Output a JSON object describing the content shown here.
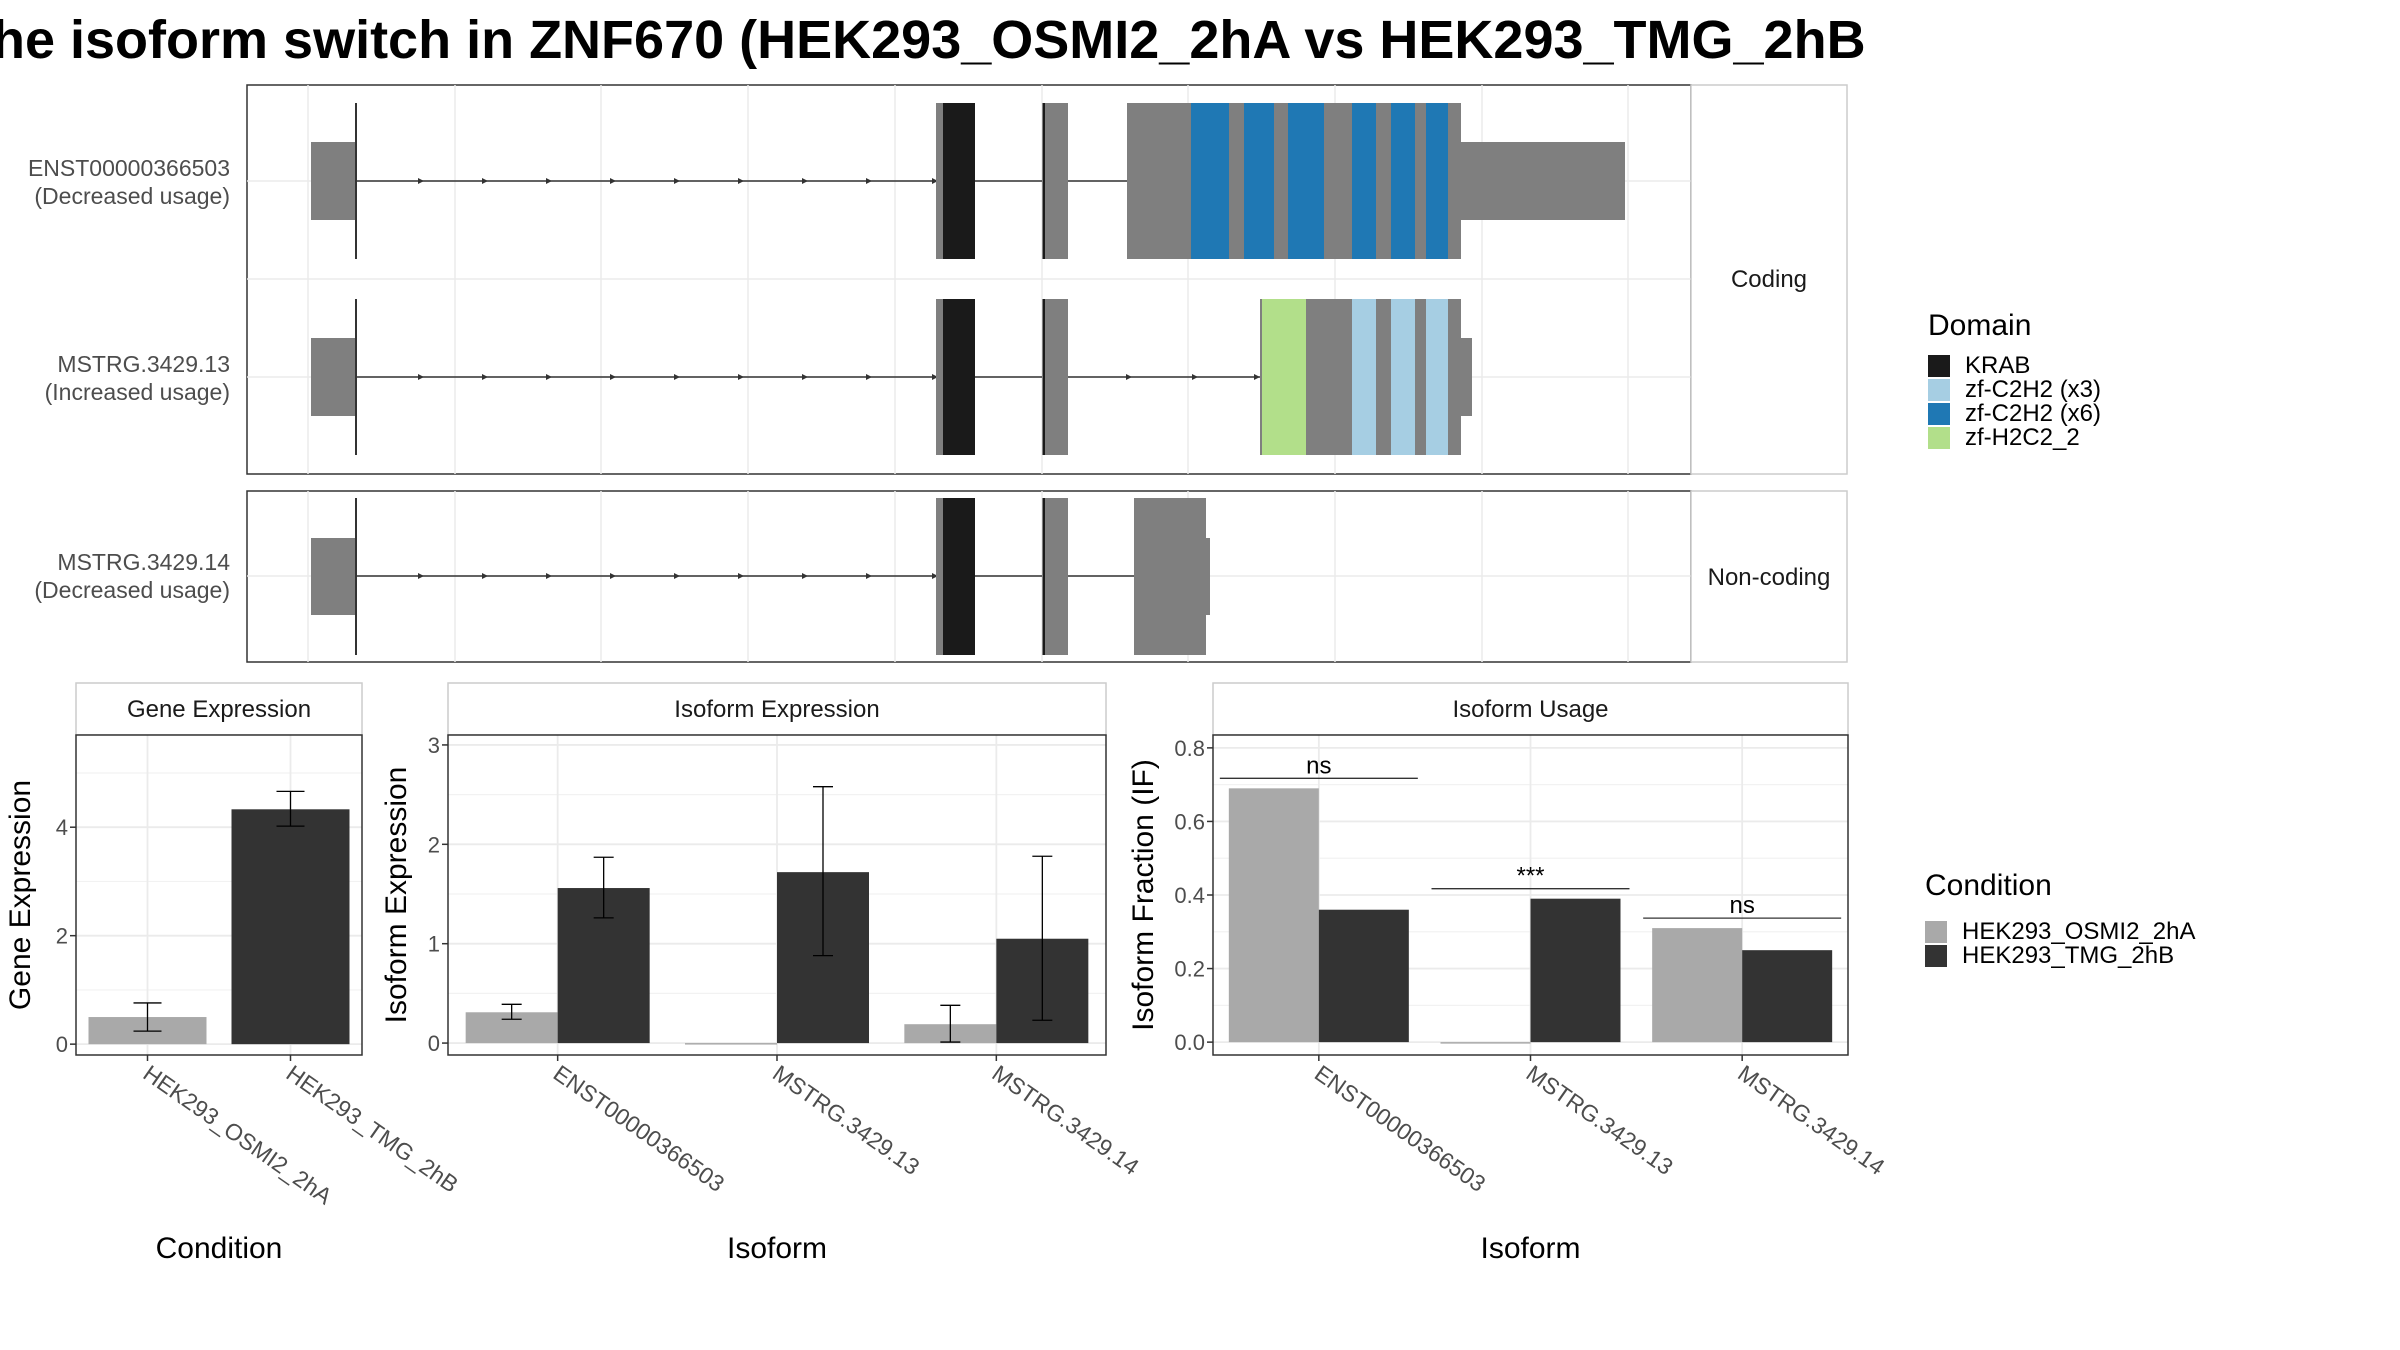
{
  "title": "he isoform switch in ZNF670 (HEK293_OSMI2_2hA vs HEK293_TMG_2hB",
  "structure": {
    "groups": [
      {
        "label": "Coding",
        "isoforms": [
          {
            "id": "ENST00000366503",
            "note": "(Decreased usage)"
          },
          {
            "id": "MSTRG.3429.13",
            "note": "(Increased usage)"
          }
        ]
      },
      {
        "label": "Non-coding",
        "isoforms": [
          {
            "id": "MSTRG.3429.14",
            "note": "(Decreased usage)"
          }
        ]
      }
    ]
  },
  "legend_domain": {
    "title": "Domain",
    "items": [
      {
        "label": "KRAB",
        "color": "#1a1a1a"
      },
      {
        "label": "zf-C2H2 (x3)",
        "color": "#a6cee3"
      },
      {
        "label": "zf-C2H2 (x6)",
        "color": "#1f78b4"
      },
      {
        "label": "zf-H2C2_2",
        "color": "#b2df8a"
      }
    ]
  },
  "legend_condition": {
    "title": "Condition",
    "items": [
      {
        "label": "HEK293_OSMI2_2hA",
        "color": "#a9a9a9"
      },
      {
        "label": "HEK293_TMG_2hB",
        "color": "#333333"
      }
    ]
  },
  "chart_data": [
    {
      "type": "bar",
      "title": "Gene Expression",
      "xlabel": "Condition",
      "ylabel": "Gene Expression",
      "categories": [
        "HEK293_OSMI2_2hA",
        "HEK293_TMG_2hB"
      ],
      "values": [
        0.5,
        4.33
      ],
      "err_low": [
        0.24,
        4.02
      ],
      "err_high": [
        0.76,
        4.66
      ],
      "ylim": [
        -0.2,
        5.7
      ],
      "yticks": [
        0,
        2,
        4
      ],
      "grid": true
    },
    {
      "type": "bar",
      "title": "Isoform Expression",
      "xlabel": "Isoform",
      "ylabel": "Isoform Expression",
      "categories": [
        "ENST00000366503",
        "MSTRG.3429.13",
        "MSTRG.3429.14"
      ],
      "series": [
        {
          "name": "HEK293_OSMI2_2hA",
          "values": [
            0.31,
            0.0,
            0.19
          ],
          "err_low": [
            0.24,
            0.0,
            0.01
          ],
          "err_high": [
            0.39,
            0.0,
            0.38
          ]
        },
        {
          "name": "HEK293_TMG_2hB",
          "values": [
            1.56,
            1.72,
            1.05
          ],
          "err_low": [
            1.26,
            0.88,
            0.23
          ],
          "err_high": [
            1.87,
            2.58,
            1.88
          ]
        }
      ],
      "ylim": [
        -0.12,
        3.1
      ],
      "yticks": [
        0,
        1,
        2,
        3
      ],
      "grid": true
    },
    {
      "type": "bar",
      "title": "Isoform Usage",
      "xlabel": "Isoform",
      "ylabel": "Isoform Fraction (IF)",
      "categories": [
        "ENST00000366503",
        "MSTRG.3429.13",
        "MSTRG.3429.14"
      ],
      "series": [
        {
          "name": "HEK293_OSMI2_2hA",
          "values": [
            0.69,
            0.0,
            0.31
          ]
        },
        {
          "name": "HEK293_TMG_2hB",
          "values": [
            0.36,
            0.39,
            0.25
          ]
        }
      ],
      "significance": [
        "ns",
        "***",
        "ns"
      ],
      "ylim": [
        -0.035,
        0.835
      ],
      "yticks": [
        "0.0",
        "0.2",
        "0.4",
        "0.6",
        "0.8"
      ],
      "grid": true
    }
  ]
}
